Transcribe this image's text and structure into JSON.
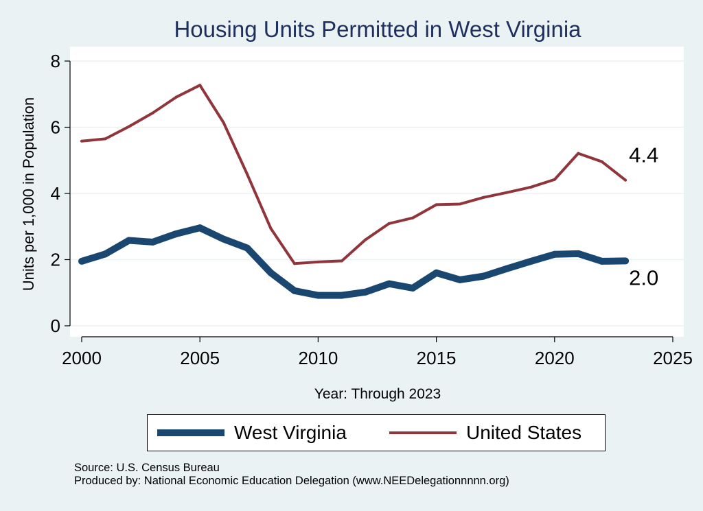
{
  "chart_data": {
    "type": "line",
    "title": "Housing Units Permitted in West Virginia",
    "xlabel": "Year: Through 2023",
    "ylabel": "Units per 1,000 in Population",
    "xlim": [
      2000,
      2025
    ],
    "ylim": [
      0,
      8
    ],
    "xticks": [
      "2000",
      "2005",
      "2010",
      "2015",
      "2020",
      "2025"
    ],
    "yticks": [
      "0",
      "2",
      "4",
      "6",
      "8"
    ],
    "x": [
      2000,
      2001,
      2002,
      2003,
      2004,
      2005,
      2006,
      2007,
      2008,
      2009,
      2010,
      2011,
      2012,
      2013,
      2014,
      2015,
      2016,
      2017,
      2018,
      2019,
      2020,
      2021,
      2022,
      2023
    ],
    "series": [
      {
        "name": "West Virginia",
        "color": "#1a476f",
        "values": [
          1.95,
          2.17,
          2.58,
          2.53,
          2.78,
          2.96,
          2.62,
          2.35,
          1.6,
          1.06,
          0.92,
          0.92,
          1.02,
          1.27,
          1.14,
          1.6,
          1.39,
          1.5,
          1.73,
          1.95,
          2.16,
          2.18,
          1.95,
          1.96
        ],
        "end_label": "2.0"
      },
      {
        "name": "United States",
        "color": "#90353b",
        "values": [
          5.58,
          5.65,
          6.02,
          6.43,
          6.91,
          7.27,
          6.14,
          4.58,
          2.94,
          1.88,
          1.93,
          1.96,
          2.6,
          3.09,
          3.26,
          3.66,
          3.68,
          3.88,
          4.03,
          4.19,
          4.42,
          5.21,
          4.96,
          4.4
        ],
        "end_label": "4.4"
      }
    ],
    "grid": true,
    "legend": "bottom"
  },
  "source": {
    "line1": "Source: U.S. Census Bureau",
    "line2": "Produced by: National Economic Education Delegation (www.NEEDelegationnnnn.org)"
  }
}
